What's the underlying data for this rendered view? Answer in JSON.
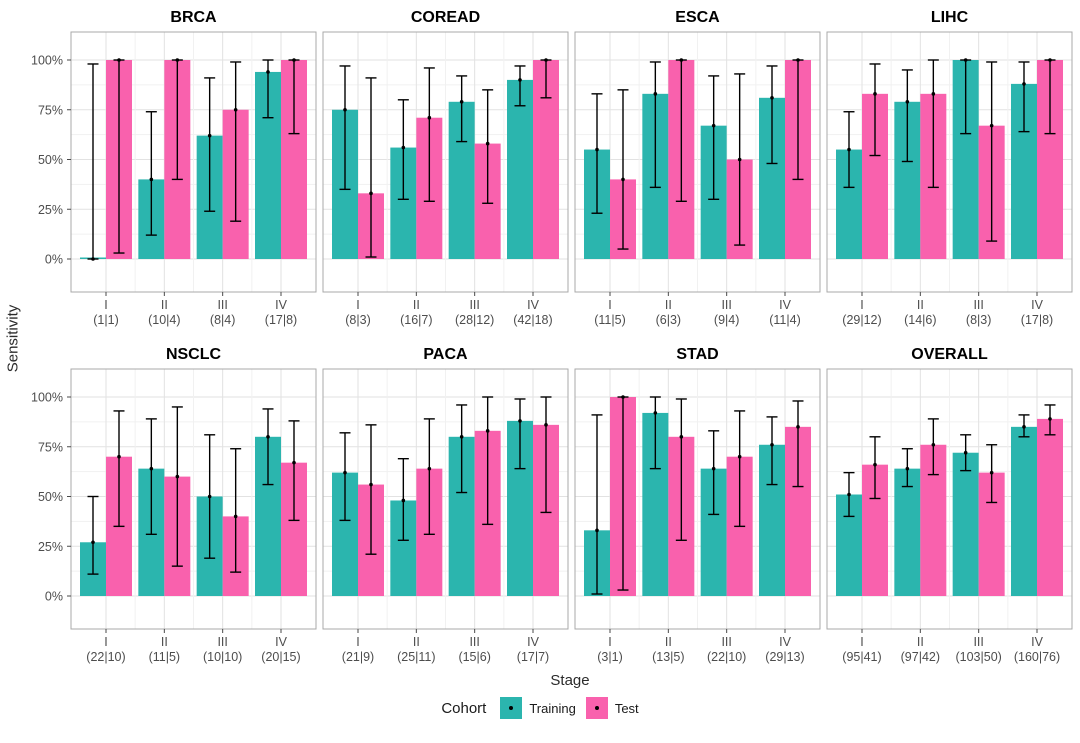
{
  "figure": {
    "ylabel": "Sensitivity",
    "xlabel": "Stage",
    "legend": {
      "title": "Cohort",
      "items": [
        {
          "label": "Training",
          "color": "#2BB5AE"
        },
        {
          "label": "Test",
          "color": "#F961AD"
        }
      ]
    }
  },
  "chart_data": {
    "type": "bar",
    "subtype": "grouped-bars-with-error-bars-faceted",
    "xlabel": "Stage",
    "ylabel": "Sensitivity",
    "ylim": [
      0,
      100
    ],
    "yticks": [
      0,
      25,
      50,
      75,
      100
    ],
    "ytick_labels": [
      "0%",
      "25%",
      "50%",
      "75%",
      "100%"
    ],
    "grid": true,
    "legend_position": "bottom",
    "legend_title": "Cohort",
    "stages": [
      "I",
      "II",
      "III",
      "IV"
    ],
    "series_names": [
      "Training",
      "Test"
    ],
    "colors": {
      "Training": "#2BB5AE",
      "Test": "#F961AD"
    },
    "error_bar_color": "#000000",
    "facets": [
      {
        "title": "BRCA",
        "counts": [
          "(1|1)",
          "(10|4)",
          "(8|4)",
          "(17|8)"
        ],
        "series": [
          {
            "name": "Training",
            "values": [
              0,
              40,
              62,
              94
            ],
            "ci_low": [
              0,
              12,
              24,
              71
            ],
            "ci_high": [
              98,
              74,
              91,
              100
            ]
          },
          {
            "name": "Test",
            "values": [
              100,
              100,
              75,
              100
            ],
            "ci_low": [
              3,
              40,
              19,
              63
            ],
            "ci_high": [
              100,
              100,
              99,
              100
            ]
          }
        ]
      },
      {
        "title": "COREAD",
        "counts": [
          "(8|3)",
          "(16|7)",
          "(28|12)",
          "(42|18)"
        ],
        "series": [
          {
            "name": "Training",
            "values": [
              75,
              56,
              79,
              90
            ],
            "ci_low": [
              35,
              30,
              59,
              77
            ],
            "ci_high": [
              97,
              80,
              92,
              97
            ]
          },
          {
            "name": "Test",
            "values": [
              33,
              71,
              58,
              100
            ],
            "ci_low": [
              1,
              29,
              28,
              81
            ],
            "ci_high": [
              91,
              96,
              85,
              100
            ]
          }
        ]
      },
      {
        "title": "ESCA",
        "counts": [
          "(11|5)",
          "(6|3)",
          "(9|4)",
          "(11|4)"
        ],
        "series": [
          {
            "name": "Training",
            "values": [
              55,
              83,
              67,
              81
            ],
            "ci_low": [
              23,
              36,
              30,
              48
            ],
            "ci_high": [
              83,
              99,
              92,
              97
            ]
          },
          {
            "name": "Test",
            "values": [
              40,
              100,
              50,
              100
            ],
            "ci_low": [
              5,
              29,
              7,
              40
            ],
            "ci_high": [
              85,
              100,
              93,
              100
            ]
          }
        ]
      },
      {
        "title": "LIHC",
        "counts": [
          "(29|12)",
          "(14|6)",
          "(8|3)",
          "(17|8)"
        ],
        "series": [
          {
            "name": "Training",
            "values": [
              55,
              79,
              100,
              88
            ],
            "ci_low": [
              36,
              49,
              63,
              64
            ],
            "ci_high": [
              74,
              95,
              100,
              99
            ]
          },
          {
            "name": "Test",
            "values": [
              83,
              83,
              67,
              100
            ],
            "ci_low": [
              52,
              36,
              9,
              63
            ],
            "ci_high": [
              98,
              100,
              99,
              100
            ]
          }
        ]
      },
      {
        "title": "NSCLC",
        "counts": [
          "(22|10)",
          "(11|5)",
          "(10|10)",
          "(20|15)"
        ],
        "series": [
          {
            "name": "Training",
            "values": [
              27,
              64,
              50,
              80
            ],
            "ci_low": [
              11,
              31,
              19,
              56
            ],
            "ci_high": [
              50,
              89,
              81,
              94
            ]
          },
          {
            "name": "Test",
            "values": [
              70,
              60,
              40,
              67
            ],
            "ci_low": [
              35,
              15,
              12,
              38
            ],
            "ci_high": [
              93,
              95,
              74,
              88
            ]
          }
        ]
      },
      {
        "title": "PACA",
        "counts": [
          "(21|9)",
          "(25|11)",
          "(15|6)",
          "(17|7)"
        ],
        "series": [
          {
            "name": "Training",
            "values": [
              62,
              48,
              80,
              88
            ],
            "ci_low": [
              38,
              28,
              52,
              64
            ],
            "ci_high": [
              82,
              69,
              96,
              99
            ]
          },
          {
            "name": "Test",
            "values": [
              56,
              64,
              83,
              86
            ],
            "ci_low": [
              21,
              31,
              36,
              42
            ],
            "ci_high": [
              86,
              89,
              100,
              100
            ]
          }
        ]
      },
      {
        "title": "STAD",
        "counts": [
          "(3|1)",
          "(13|5)",
          "(22|10)",
          "(29|13)"
        ],
        "series": [
          {
            "name": "Training",
            "values": [
              33,
              92,
              64,
              76
            ],
            "ci_low": [
              1,
              64,
              41,
              56
            ],
            "ci_high": [
              91,
              100,
              83,
              90
            ]
          },
          {
            "name": "Test",
            "values": [
              100,
              80,
              70,
              85
            ],
            "ci_low": [
              3,
              28,
              35,
              55
            ],
            "ci_high": [
              100,
              99,
              93,
              98
            ]
          }
        ]
      },
      {
        "title": "OVERALL",
        "counts": [
          "(95|41)",
          "(97|42)",
          "(103|50)",
          "(160|76)"
        ],
        "series": [
          {
            "name": "Training",
            "values": [
              51,
              64,
              72,
              85
            ],
            "ci_low": [
              40,
              55,
              63,
              80
            ],
            "ci_high": [
              62,
              74,
              81,
              91
            ]
          },
          {
            "name": "Test",
            "values": [
              66,
              76,
              62,
              89
            ],
            "ci_low": [
              49,
              61,
              47,
              81
            ],
            "ci_high": [
              80,
              89,
              76,
              96
            ]
          }
        ]
      }
    ]
  }
}
